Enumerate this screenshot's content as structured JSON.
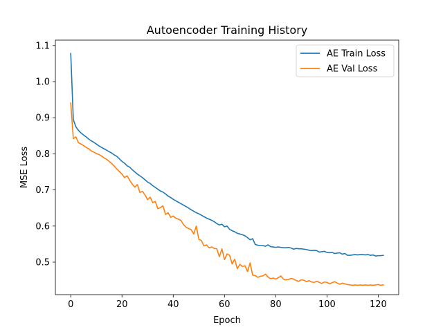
{
  "chart_data": {
    "type": "line",
    "title": "Autoencoder Training History",
    "xlabel": "Epoch",
    "ylabel": "MSE Loss",
    "xlim": [
      -6,
      128
    ],
    "ylim": [
      0.41,
      1.115
    ],
    "xticks": [
      0,
      20,
      40,
      60,
      80,
      100,
      120
    ],
    "yticks": [
      0.5,
      0.6,
      0.7,
      0.8,
      0.9,
      1.0,
      1.1
    ],
    "ytick_labels": [
      "0.5",
      "0.6",
      "0.7",
      "0.8",
      "0.9",
      "1.0",
      "1.1"
    ],
    "grid": false,
    "legend_position": "top-right",
    "x": [
      0,
      1,
      2,
      3,
      4,
      5,
      6,
      7,
      8,
      9,
      10,
      11,
      12,
      13,
      14,
      15,
      16,
      17,
      18,
      19,
      20,
      21,
      22,
      23,
      24,
      25,
      26,
      27,
      28,
      29,
      30,
      31,
      32,
      33,
      34,
      35,
      36,
      37,
      38,
      39,
      40,
      41,
      42,
      43,
      44,
      45,
      46,
      47,
      48,
      49,
      50,
      51,
      52,
      53,
      54,
      55,
      56,
      57,
      58,
      59,
      60,
      61,
      62,
      63,
      64,
      65,
      66,
      67,
      68,
      69,
      70,
      71,
      72,
      73,
      74,
      75,
      76,
      77,
      78,
      79,
      80,
      81,
      82,
      83,
      84,
      85,
      86,
      87,
      88,
      89,
      90,
      91,
      92,
      93,
      94,
      95,
      96,
      97,
      98,
      99,
      100,
      101,
      102,
      103,
      104,
      105,
      106,
      107,
      108,
      109,
      110,
      111,
      112,
      113,
      114,
      115,
      116,
      117,
      118,
      119,
      120,
      121,
      122
    ],
    "series": [
      {
        "name": "AE Train Loss",
        "color": "#1f77b4",
        "values": [
          1.078,
          0.895,
          0.875,
          0.865,
          0.858,
          0.852,
          0.847,
          0.841,
          0.836,
          0.832,
          0.827,
          0.822,
          0.818,
          0.814,
          0.81,
          0.806,
          0.802,
          0.797,
          0.793,
          0.786,
          0.779,
          0.774,
          0.767,
          0.763,
          0.756,
          0.75,
          0.744,
          0.739,
          0.734,
          0.728,
          0.722,
          0.718,
          0.712,
          0.707,
          0.702,
          0.697,
          0.694,
          0.689,
          0.683,
          0.679,
          0.674,
          0.67,
          0.666,
          0.662,
          0.658,
          0.654,
          0.65,
          0.645,
          0.641,
          0.637,
          0.634,
          0.63,
          0.626,
          0.622,
          0.619,
          0.616,
          0.612,
          0.607,
          0.603,
          0.605,
          0.598,
          0.6,
          0.591,
          0.587,
          0.584,
          0.58,
          0.578,
          0.576,
          0.573,
          0.568,
          0.562,
          0.565,
          0.549,
          0.547,
          0.546,
          0.546,
          0.544,
          0.548,
          0.543,
          0.542,
          0.541,
          0.542,
          0.541,
          0.54,
          0.54,
          0.541,
          0.539,
          0.536,
          0.538,
          0.537,
          0.537,
          0.536,
          0.535,
          0.533,
          0.532,
          0.533,
          0.532,
          0.528,
          0.529,
          0.53,
          0.527,
          0.526,
          0.527,
          0.524,
          0.525,
          0.526,
          0.522,
          0.524,
          0.519,
          0.519,
          0.52,
          0.521,
          0.52,
          0.521,
          0.521,
          0.52,
          0.521,
          0.519,
          0.52,
          0.517,
          0.518,
          0.518,
          0.519
        ]
      },
      {
        "name": "AE Val Loss",
        "color": "#ff7f0e",
        "values": [
          0.941,
          0.842,
          0.847,
          0.831,
          0.827,
          0.823,
          0.818,
          0.814,
          0.808,
          0.805,
          0.801,
          0.798,
          0.794,
          0.789,
          0.785,
          0.779,
          0.773,
          0.766,
          0.758,
          0.751,
          0.744,
          0.734,
          0.739,
          0.727,
          0.716,
          0.708,
          0.715,
          0.693,
          0.696,
          0.686,
          0.673,
          0.68,
          0.665,
          0.668,
          0.648,
          0.651,
          0.656,
          0.632,
          0.637,
          0.624,
          0.628,
          0.622,
          0.619,
          0.616,
          0.604,
          0.597,
          0.593,
          0.59,
          0.578,
          0.6,
          0.563,
          0.56,
          0.545,
          0.548,
          0.54,
          0.542,
          0.538,
          0.537,
          0.515,
          0.537,
          0.507,
          0.523,
          0.519,
          0.495,
          0.508,
          0.482,
          0.494,
          0.488,
          0.49,
          0.474,
          0.498,
          0.464,
          0.463,
          0.458,
          0.461,
          0.462,
          0.467,
          0.459,
          0.454,
          0.456,
          0.453,
          0.457,
          0.462,
          0.453,
          0.451,
          0.452,
          0.455,
          0.453,
          0.449,
          0.447,
          0.451,
          0.45,
          0.446,
          0.449,
          0.445,
          0.444,
          0.447,
          0.444,
          0.441,
          0.445,
          0.444,
          0.44,
          0.443,
          0.446,
          0.442,
          0.439,
          0.442,
          0.44,
          0.438,
          0.437,
          0.436,
          0.437,
          0.436,
          0.437,
          0.436,
          0.437,
          0.436,
          0.437,
          0.436,
          0.437,
          0.438,
          0.436,
          0.437
        ]
      }
    ]
  }
}
